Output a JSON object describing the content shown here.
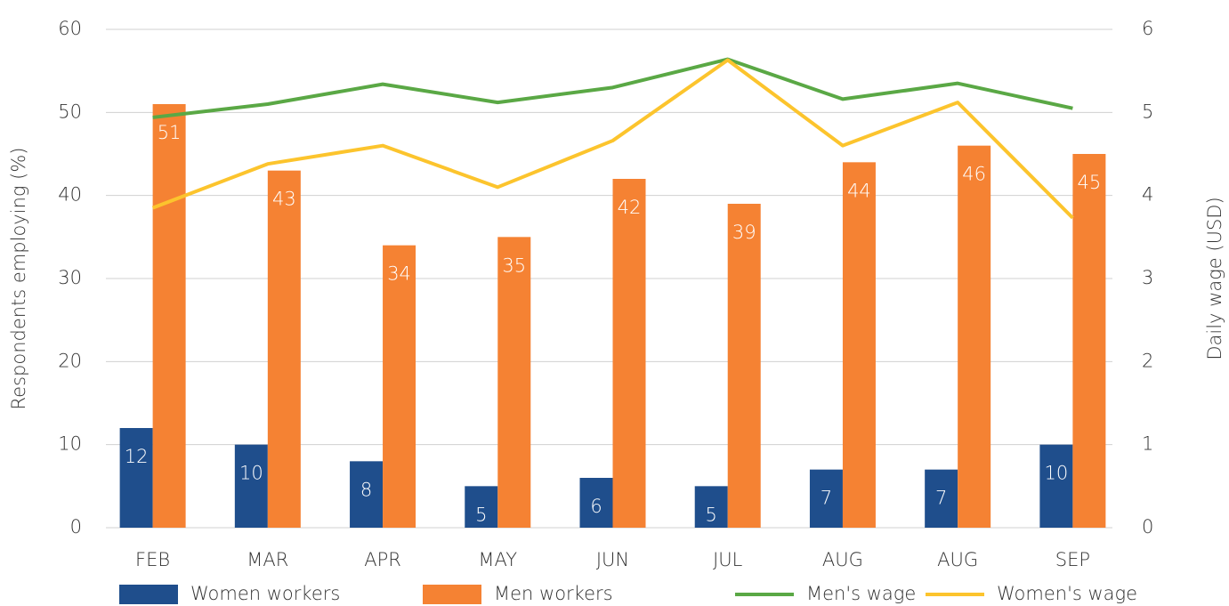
{
  "chart_data": {
    "type": "bar",
    "categories": [
      "FEB",
      "MAR",
      "APR",
      "MAY",
      "JUN",
      "JUL",
      "AUG",
      "AUG",
      "SEP"
    ],
    "series": [
      {
        "name": "Women workers",
        "type": "bar",
        "color": "#1f4e8c",
        "values": [
          12,
          10,
          8,
          5,
          6,
          5,
          7,
          7,
          10
        ]
      },
      {
        "name": "Men workers",
        "type": "bar",
        "color": "#f58233",
        "values": [
          51,
          43,
          34,
          35,
          42,
          39,
          44,
          46,
          45
        ]
      },
      {
        "name": "Men's wage",
        "type": "line",
        "axis": "y2",
        "color": "#5aa845",
        "values": [
          4.94,
          5.1,
          5.34,
          5.12,
          5.3,
          5.64,
          5.16,
          5.35,
          5.05
        ]
      },
      {
        "name": "Women's wage",
        "type": "line",
        "axis": "y2",
        "color": "#fcc42d",
        "values": [
          3.85,
          4.38,
          4.6,
          4.1,
          4.66,
          5.63,
          4.6,
          5.12,
          3.73
        ]
      }
    ],
    "ylabel": "Respondents employing (%)",
    "y2label": "Daily wage (USD)",
    "ylim": [
      0,
      60
    ],
    "yticks": [
      0,
      10,
      20,
      30,
      40,
      50,
      60
    ],
    "y2lim": [
      0,
      6
    ],
    "y2ticks": [
      0,
      1,
      2,
      3,
      4,
      5,
      6
    ],
    "grid": true,
    "legend": "bottom"
  }
}
